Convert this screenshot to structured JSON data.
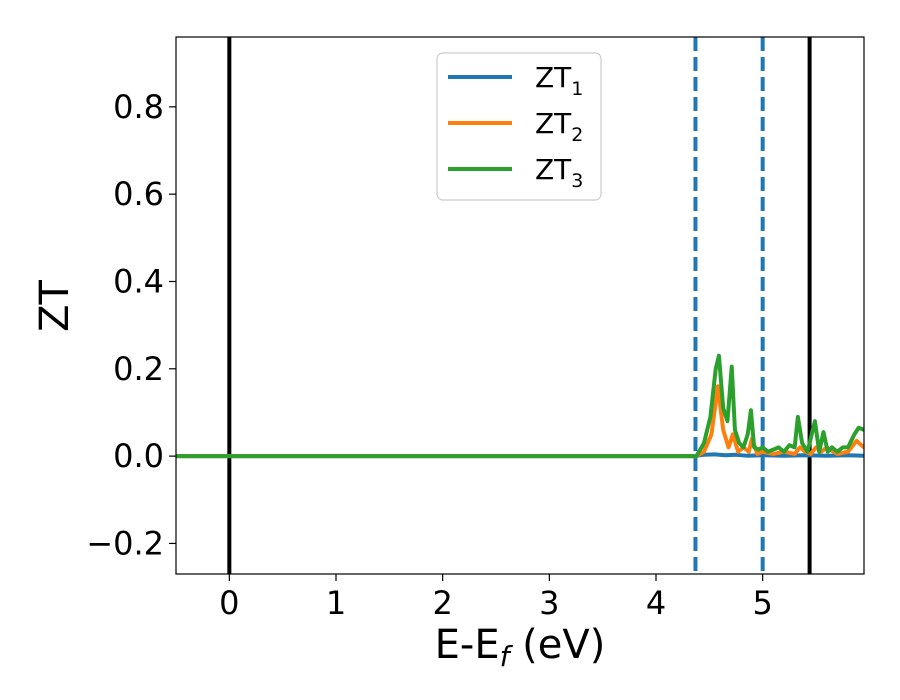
{
  "chart_data": {
    "type": "line",
    "title": "",
    "xlabel": "E-E",
    "xlabel_sub": "f",
    "xlabel_unit": " (eV)",
    "ylabel": "ZT",
    "xlim": [
      -0.5,
      5.95
    ],
    "ylim": [
      -0.27,
      0.96
    ],
    "xticks": [
      0,
      1,
      2,
      3,
      4,
      5
    ],
    "xtick_labels": [
      "0",
      "1",
      "2",
      "3",
      "4",
      "5"
    ],
    "yticks": [
      -0.2,
      0.0,
      0.2,
      0.4,
      0.6,
      0.8
    ],
    "ytick_labels": [
      "−0.2",
      "0.0",
      "0.2",
      "0.4",
      "0.6",
      "0.8"
    ],
    "grid": false,
    "legend_position": "upper-center",
    "vertical_lines": [
      {
        "x": 0.0,
        "style": "solid",
        "color": "#000000"
      },
      {
        "x": 5.44,
        "style": "solid",
        "color": "#000000"
      },
      {
        "x": 4.37,
        "style": "dashed",
        "color": "#1f77b4"
      },
      {
        "x": 5.0,
        "style": "dashed",
        "color": "#1f77b4"
      }
    ],
    "series": [
      {
        "name": "ZT",
        "name_sub": "1",
        "color": "#1f77b4",
        "x": [
          -0.5,
          4.35,
          4.45,
          4.55,
          4.65,
          4.75,
          4.85,
          5.0,
          5.2,
          5.4,
          5.6,
          5.8,
          5.95
        ],
        "y": [
          0.0,
          0.0,
          0.003,
          0.004,
          0.002,
          0.003,
          0.001,
          0.002,
          0.001,
          0.002,
          0.001,
          0.002,
          0.001
        ]
      },
      {
        "name": "ZT",
        "name_sub": "2",
        "color": "#ff7f0e",
        "x": [
          -0.5,
          4.38,
          4.45,
          4.52,
          4.58,
          4.63,
          4.68,
          4.72,
          4.77,
          4.82,
          4.87,
          4.9,
          4.95,
          5.0,
          5.1,
          5.2,
          5.3,
          5.35,
          5.4,
          5.45,
          5.5,
          5.55,
          5.6,
          5.7,
          5.8,
          5.88,
          5.95
        ],
        "y": [
          0.0,
          0.0,
          0.01,
          0.05,
          0.16,
          0.06,
          0.02,
          0.05,
          0.01,
          0.02,
          0.01,
          0.04,
          0.005,
          0.01,
          0.005,
          0.01,
          0.005,
          0.02,
          0.01,
          0.005,
          0.02,
          0.01,
          0.02,
          0.005,
          0.01,
          0.035,
          0.02
        ]
      },
      {
        "name": "ZT",
        "name_sub": "3",
        "color": "#2ca02c",
        "x": [
          -0.5,
          4.38,
          4.45,
          4.51,
          4.56,
          4.59,
          4.63,
          4.67,
          4.71,
          4.74,
          4.78,
          4.82,
          4.86,
          4.89,
          4.92,
          4.96,
          5.0,
          5.05,
          5.1,
          5.15,
          5.2,
          5.25,
          5.3,
          5.33,
          5.37,
          5.42,
          5.45,
          5.49,
          5.53,
          5.57,
          5.61,
          5.65,
          5.7,
          5.75,
          5.8,
          5.86,
          5.9,
          5.95
        ],
        "y": [
          0.0,
          0.0,
          0.03,
          0.09,
          0.2,
          0.23,
          0.11,
          0.08,
          0.205,
          0.06,
          0.03,
          0.02,
          0.05,
          0.105,
          0.02,
          0.015,
          0.02,
          0.01,
          0.015,
          0.02,
          0.01,
          0.025,
          0.02,
          0.09,
          0.03,
          0.01,
          0.04,
          0.08,
          0.01,
          0.055,
          0.01,
          0.02,
          0.01,
          0.02,
          0.02,
          0.05,
          0.065,
          0.06
        ]
      }
    ]
  }
}
